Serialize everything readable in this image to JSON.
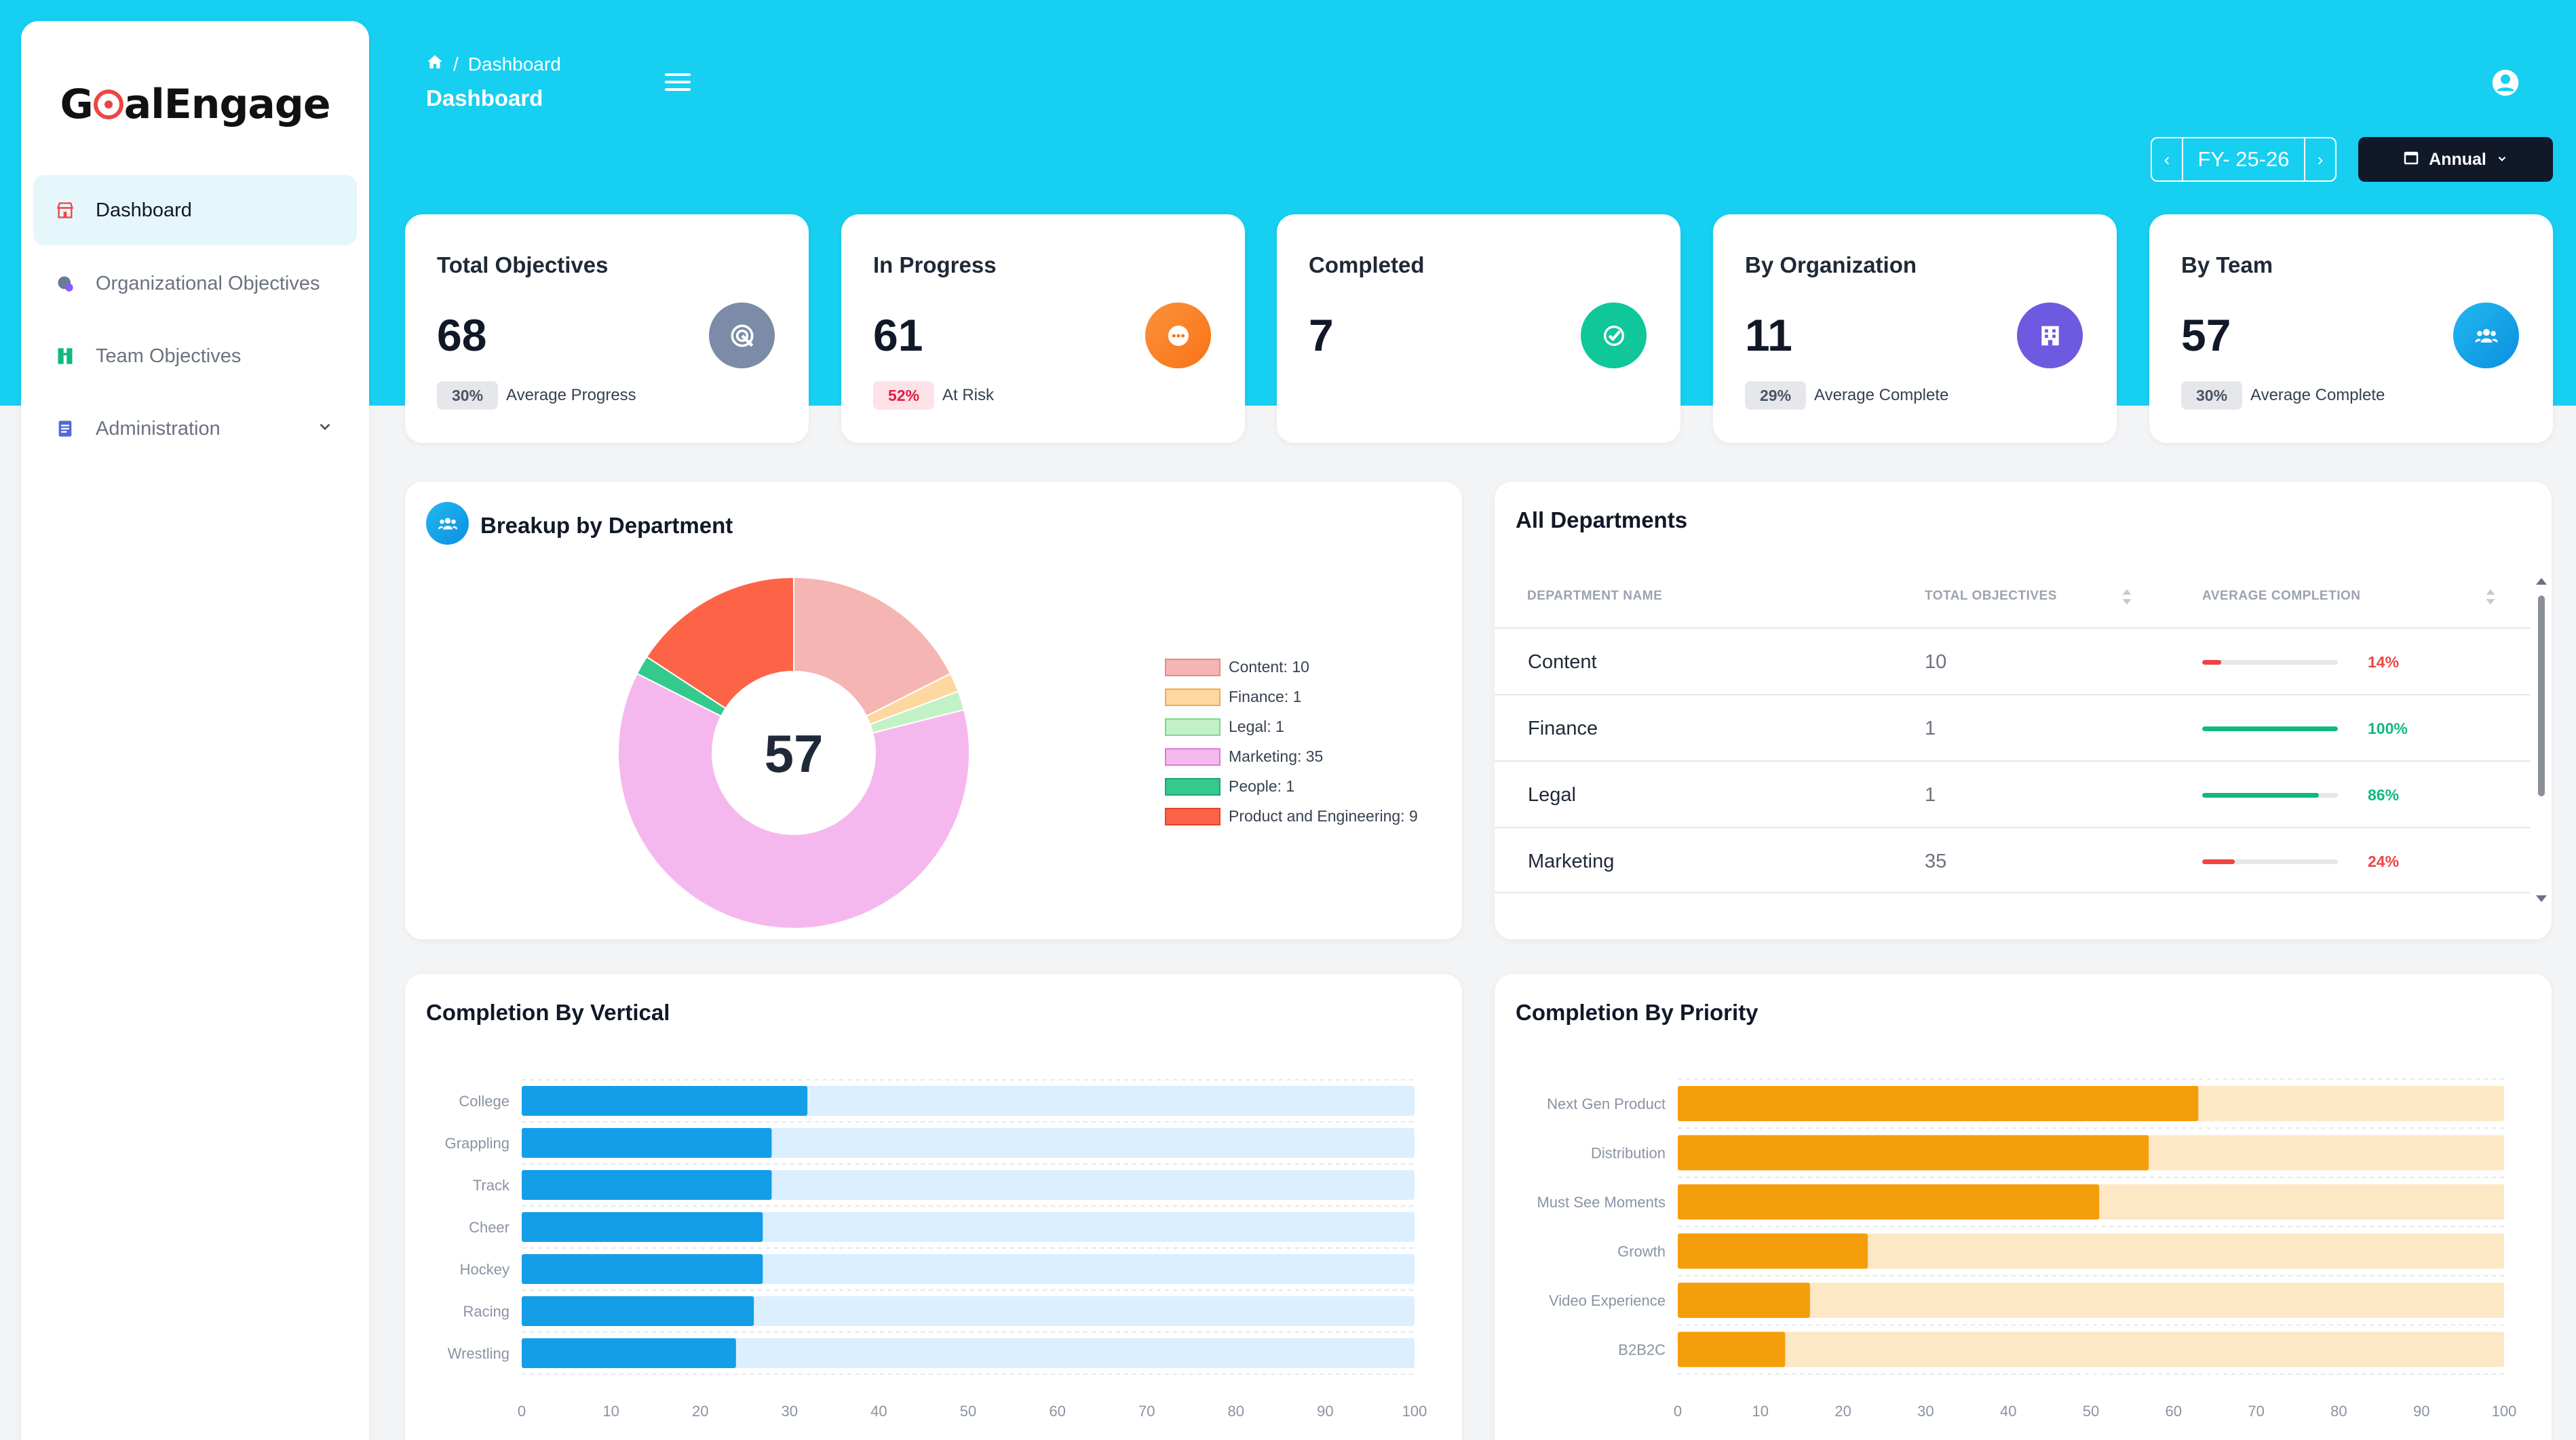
{
  "app": {
    "logo_text": "GoalEngage",
    "logo_part1": "G",
    "logo_part2": "alEngage"
  },
  "colors": {
    "header_bg": "#17cff1",
    "primary_blue": "#0ea5e9",
    "priority_orange": "#f59e0b"
  },
  "sidebar": {
    "items": [
      {
        "label": "Dashboard",
        "icon": "store-icon",
        "active": true
      },
      {
        "label": "Organizational Objectives",
        "icon": "globe-icon",
        "active": false
      },
      {
        "label": "Team Objectives",
        "icon": "team-icon",
        "active": false
      },
      {
        "label": "Administration",
        "icon": "document-icon",
        "active": false,
        "expandable": true
      }
    ]
  },
  "header": {
    "breadcrumb_current": "Dashboard",
    "breadcrumb_separator": "/",
    "page_title": "Dashboard"
  },
  "filters": {
    "fiscal_year": "FY- 25-26",
    "period": "Annual"
  },
  "stats": [
    {
      "title": "Total Objectives",
      "value": "68",
      "badge": "30%",
      "badge_type": "neutral",
      "sub": "Average Progress",
      "icon": "target-icon",
      "icon_color": "#7c8ba8"
    },
    {
      "title": "In Progress",
      "value": "61",
      "badge": "52%",
      "badge_type": "danger",
      "sub": "At Risk",
      "icon": "more-icon",
      "icon_color": "#f97316"
    },
    {
      "title": "Completed",
      "value": "7",
      "badge": "",
      "badge_type": "none",
      "sub": "",
      "icon": "check-icon",
      "icon_color": "#10c79a"
    },
    {
      "title": "By Organization",
      "value": "11",
      "badge": "29%",
      "badge_type": "neutral",
      "sub": "Average Complete",
      "icon": "building-icon",
      "icon_color": "#6d5ae0"
    },
    {
      "title": "By Team",
      "value": "57",
      "badge": "30%",
      "badge_type": "neutral",
      "sub": "Average Complete",
      "icon": "team-icon",
      "icon_color": "#0ea5e9"
    }
  ],
  "breakup": {
    "title": "Breakup by Department",
    "center_value": "57"
  },
  "departments_table": {
    "title": "All Departments",
    "columns": [
      "DEPARTMENT NAME",
      "TOTAL OBJECTIVES",
      "AVERAGE COMPLETION"
    ],
    "rows": [
      {
        "name": "Content",
        "total": "10",
        "completion": 14,
        "completion_label": "14%",
        "color": "#ef4444"
      },
      {
        "name": "Finance",
        "total": "1",
        "completion": 100,
        "completion_label": "100%",
        "color": "#10b981"
      },
      {
        "name": "Legal",
        "total": "1",
        "completion": 86,
        "completion_label": "86%",
        "color": "#10b981"
      },
      {
        "name": "Marketing",
        "total": "35",
        "completion": 24,
        "completion_label": "24%",
        "color": "#ef4444"
      }
    ]
  },
  "vertical": {
    "title": "Completion By Vertical"
  },
  "priority": {
    "title": "Completion By Priority"
  },
  "chart_data": [
    {
      "type": "pie",
      "title": "Breakup by Department",
      "labels": [
        "Content",
        "Finance",
        "Legal",
        "Marketing",
        "People",
        "Product and Engineering"
      ],
      "values": [
        10,
        1,
        1,
        35,
        1,
        9
      ],
      "legend": [
        "Content: 10",
        "Finance: 1",
        "Legal: 1",
        "Marketing: 35",
        "People: 1",
        "Product and Engineering: 9"
      ],
      "colors": [
        "#f5b5b3",
        "#fed7a0",
        "#c3f1c7",
        "#f5b8ee",
        "#35c98e",
        "#fd6447"
      ],
      "borders": [
        "#e88a86",
        "#f0a955",
        "#7fd88a",
        "#e07ad4",
        "#1ea56f",
        "#e0442a"
      ],
      "legend_position": "right",
      "center_text": "57"
    },
    {
      "type": "bar",
      "title": "Completion By Vertical",
      "orientation": "horizontal",
      "categories": [
        "College",
        "Grappling",
        "Track",
        "Cheer",
        "Hockey",
        "Racing",
        "Wrestling"
      ],
      "values": [
        32,
        28,
        28,
        27,
        27,
        26,
        24
      ],
      "xlim": [
        0,
        100
      ],
      "xticks": [
        "0",
        "10",
        "20",
        "30",
        "40",
        "50",
        "60",
        "70",
        "80",
        "90",
        "100"
      ],
      "bar_color": "#149ee8",
      "track_color": "#dcefff"
    },
    {
      "type": "bar",
      "title": "Completion By Priority",
      "orientation": "horizontal",
      "categories": [
        "Next Gen Product",
        "Distribution",
        "Must See Moments",
        "Growth",
        "Video Experience",
        "B2B2C"
      ],
      "values": [
        63,
        57,
        51,
        23,
        16,
        13
      ],
      "xlim": [
        0,
        100
      ],
      "xticks": [
        "0",
        "10",
        "20",
        "30",
        "40",
        "50",
        "60",
        "70",
        "80",
        "90",
        "100"
      ],
      "bar_color": "#f59e0b",
      "track_color": "#fde8c6"
    }
  ]
}
